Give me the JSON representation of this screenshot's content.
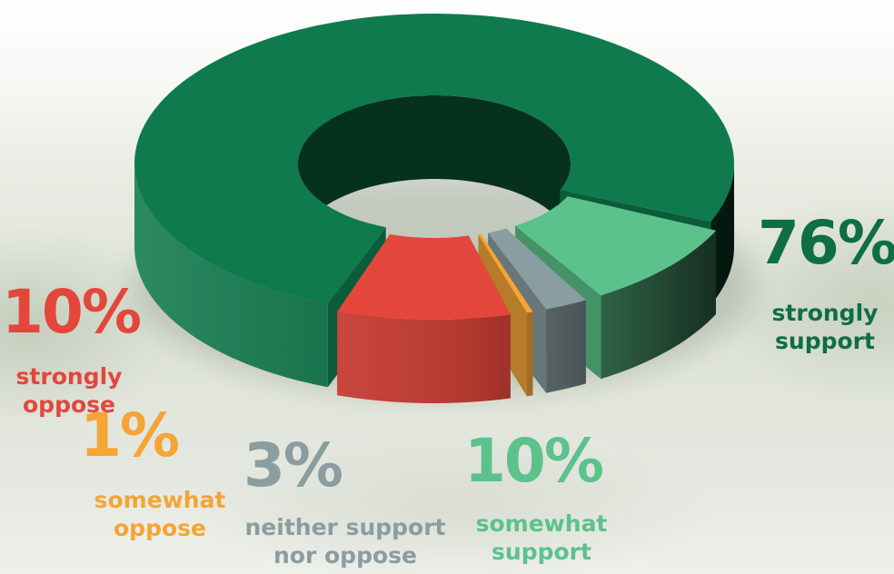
{
  "chart_data": {
    "type": "pie",
    "style": "3d-donut",
    "title": "",
    "slices": [
      {
        "value": 76,
        "pct_label": "76%",
        "label": "strongly support",
        "lines": [
          "strongly",
          "support"
        ],
        "color": "#0f7a4e"
      },
      {
        "value": 10,
        "pct_label": "10%",
        "label": "somewhat support",
        "lines": [
          "somewhat",
          "support"
        ],
        "color": "#5cc28c"
      },
      {
        "value": 3,
        "pct_label": "3%",
        "label": "neither support nor oppose",
        "lines": [
          "neither support",
          "nor oppose"
        ],
        "color": "#8a9da0"
      },
      {
        "value": 1,
        "pct_label": "1%",
        "label": "somewhat oppose",
        "lines": [
          "somewhat",
          "oppose"
        ],
        "color": "#f4a536"
      },
      {
        "value": 10,
        "pct_label": "10%",
        "label": "strongly oppose",
        "lines": [
          "strongly",
          "oppose"
        ],
        "color": "#e3473c"
      }
    ]
  }
}
